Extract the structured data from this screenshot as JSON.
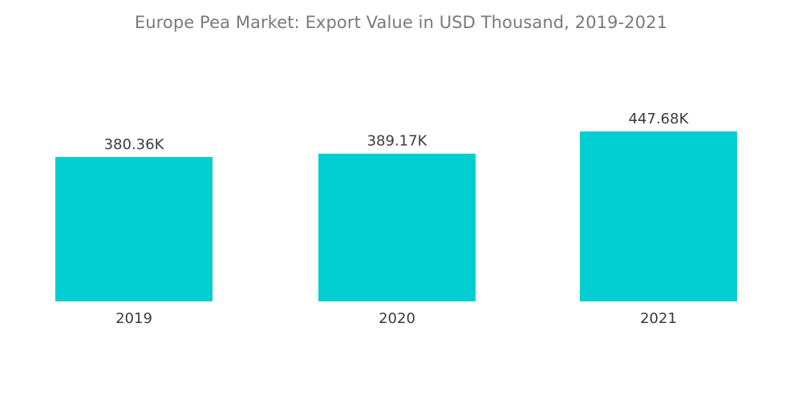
{
  "chart_data": {
    "type": "bar",
    "title": "Europe Pea Market: Export Value in USD Thousand, 2019-2021",
    "categories": [
      "2019",
      "2020",
      "2021"
    ],
    "values": [
      380.36,
      389.17,
      447.68
    ],
    "data_labels": [
      "380.36K",
      "389.17K",
      "447.68K"
    ],
    "xlabel": "",
    "ylabel": "",
    "ylim": [
      0,
      480
    ],
    "grid": false,
    "legend": "none",
    "colors": {
      "bar": "#00ced1",
      "title": "#7a7a7a",
      "label": "#3c3c3c"
    }
  }
}
